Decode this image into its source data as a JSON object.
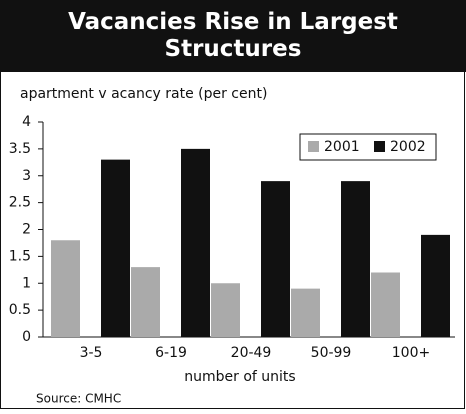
{
  "chart_data": {
    "type": "bar",
    "title": "Vacancies Rise in Largest Structures",
    "y_label": "apartment v acancy rate (per cent)",
    "x_label": "number of units",
    "source": "Source:   CMHC",
    "categories": [
      "3-5",
      "6-19",
      "20-49",
      "50-99",
      "100+"
    ],
    "series": [
      {
        "name": "2001",
        "color": "#aaaaaa",
        "values": [
          1.8,
          1.3,
          1.0,
          0.9,
          1.2
        ]
      },
      {
        "name": "2002",
        "color": "#111111",
        "values": [
          3.3,
          3.5,
          2.9,
          2.9,
          1.9
        ]
      }
    ],
    "ylim": [
      0,
      4
    ],
    "yticks": [
      0,
      0.5,
      1,
      1.5,
      2,
      2.5,
      3,
      3.5,
      4
    ],
    "grid": false,
    "legend": "top-right"
  }
}
